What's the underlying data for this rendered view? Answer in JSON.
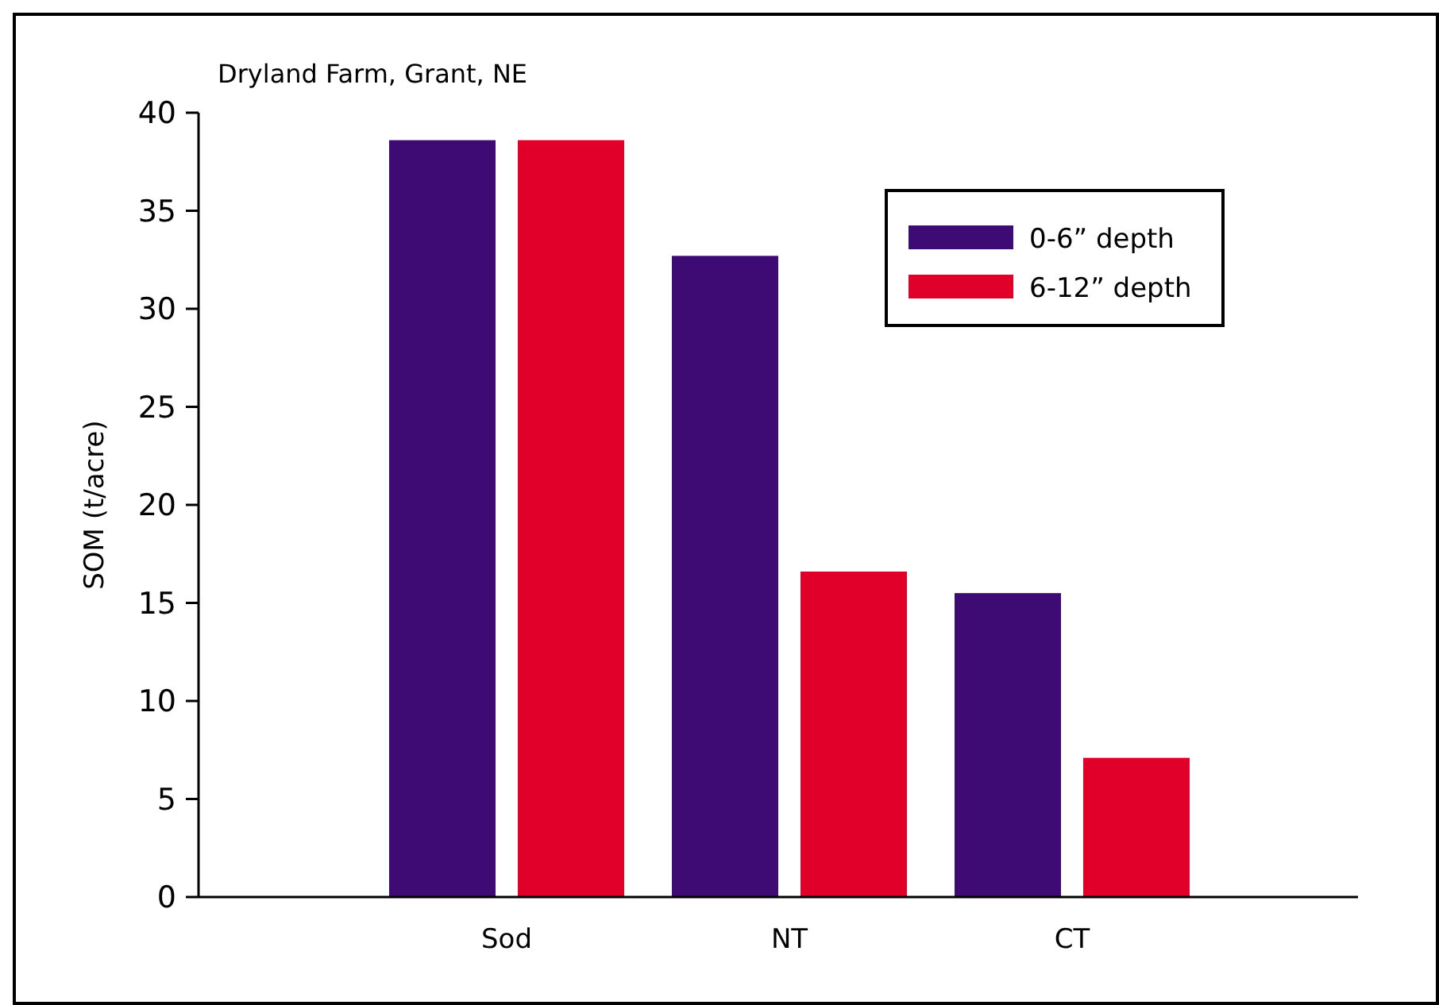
{
  "chart_data": {
    "type": "bar",
    "title": "Dryland Farm, Grant, NE",
    "ylabel": "SOM (t/acre)",
    "categories": [
      "Sod",
      "NT",
      "CT"
    ],
    "series": [
      {
        "name": "0-6” depth",
        "color": "#3e0a74",
        "values": [
          38.6,
          32.7,
          15.5
        ]
      },
      {
        "name": "6-12” depth",
        "color": "#e0002a",
        "values": [
          38.6,
          16.6,
          7.1
        ]
      }
    ],
    "ylim": [
      0,
      40
    ],
    "yticks": [
      0,
      5,
      10,
      15,
      20,
      25,
      30,
      35,
      40
    ],
    "grid": false,
    "legend": "top right"
  }
}
